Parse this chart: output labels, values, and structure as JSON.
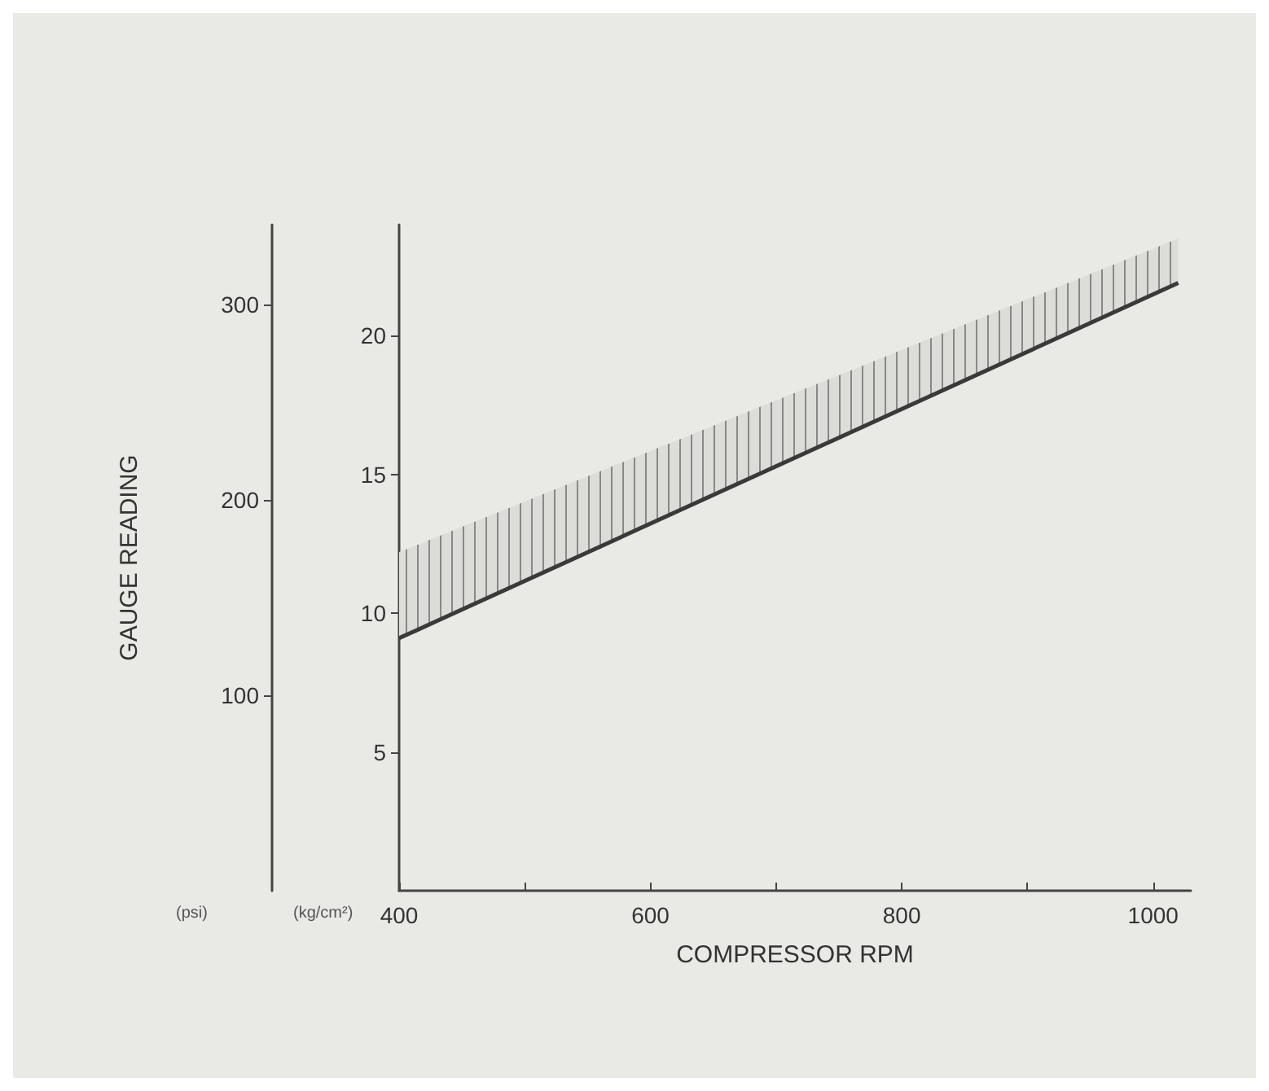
{
  "chart_data": {
    "type": "line",
    "xlabel": "COMPRESSOR RPM",
    "ylabel": "GAUGE READING",
    "annotations": [
      "(psi)",
      "(kg/cm²)"
    ],
    "x": [
      400,
      1020
    ],
    "series": [
      {
        "color": "#3a3a3a",
        "axis": "y2",
        "values": [
          9.1,
          21.9
        ],
        "lower": [
          9.1,
          21.9
        ],
        "upper": [
          12.2,
          23.5
        ]
      }
    ],
    "xlim": [
      400,
      1030
    ],
    "xticks": [
      400,
      {
        "value": 500,
        "label": null
      },
      600,
      {
        "value": 700,
        "label": null
      },
      800,
      {
        "value": 900,
        "label": null
      },
      1000
    ],
    "ylim": [
      0,
      341
    ],
    "yticks": [
      100,
      200,
      300
    ],
    "y2lim": [
      0,
      24
    ],
    "y2ticks": [
      5,
      10,
      15,
      20
    ],
    "marker": "none",
    "line_style": "solid"
  }
}
